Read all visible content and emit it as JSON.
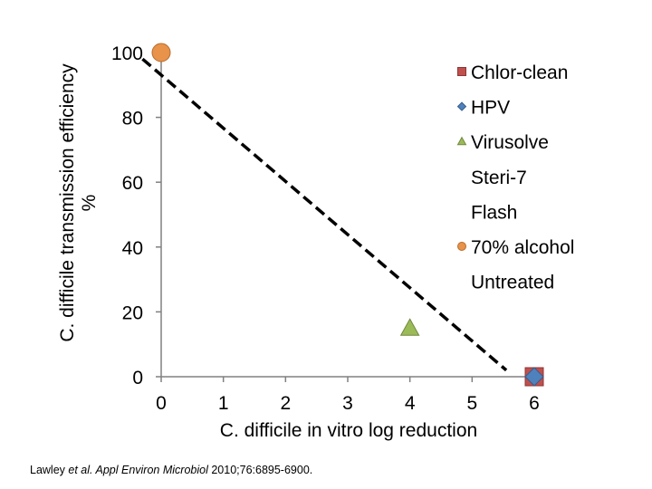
{
  "chart_data": {
    "type": "scatter",
    "xlabel": "C. difficile in vitro log reduction",
    "ylabel_lines": [
      "C. difficile transmission efficiency",
      "%"
    ],
    "xlim": [
      0,
      6
    ],
    "ylim": [
      0,
      100
    ],
    "x_ticks": [
      "0",
      "1",
      "2",
      "3",
      "4",
      "5",
      "6"
    ],
    "y_ticks": [
      "0",
      "20",
      "40",
      "60",
      "80",
      "100"
    ],
    "grid": false,
    "legend_position": "right",
    "series": [
      {
        "name": "Chlor-clean",
        "marker": "square",
        "color": "#c0504d",
        "points": [
          [
            6,
            0
          ]
        ]
      },
      {
        "name": "HPV",
        "marker": "diamond",
        "color": "#4f81bd",
        "points": [
          [
            6,
            0
          ]
        ]
      },
      {
        "name": "Virusolve",
        "marker": "triangle",
        "color": "#9bbb59",
        "points": [
          [
            4,
            15
          ]
        ]
      },
      {
        "name": "Steri-7",
        "marker": "none",
        "color": "",
        "points": []
      },
      {
        "name": "Flash",
        "marker": "none",
        "color": "",
        "points": []
      },
      {
        "name": "70% alcohol",
        "marker": "circle",
        "color": "#e8924a",
        "points": [
          [
            0,
            100
          ]
        ]
      },
      {
        "name": "Untreated",
        "marker": "none",
        "color": "",
        "points": []
      }
    ],
    "trendline": {
      "style": "dashed",
      "color": "#000000",
      "from": [
        -0.3,
        98
      ],
      "to": [
        5.55,
        2
      ]
    }
  },
  "citation": {
    "authors": "Lawley ",
    "etal": "et al. Appl Environ Microbiol",
    "details": " 2010;76:6895-6900."
  }
}
